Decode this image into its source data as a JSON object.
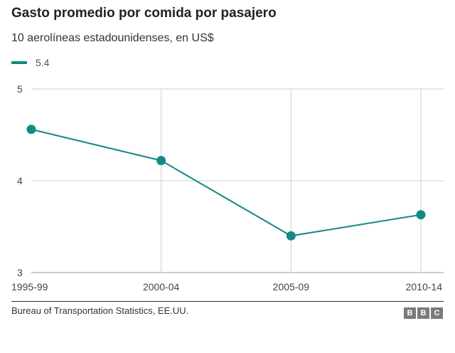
{
  "header": {
    "title": "Gasto promedio por comida por pasajero",
    "subtitle": "10 aerolíneas estadounidenses, en US$"
  },
  "footer": {
    "source": "Bureau of Transportation Statistics, EE.UU.",
    "logo_letters": [
      "B",
      "B",
      "C"
    ]
  },
  "chart_data": {
    "type": "line",
    "categories": [
      "1995-99",
      "2000-04",
      "2005-09",
      "2010-14"
    ],
    "series": [
      {
        "name": "5.4",
        "values": [
          4.56,
          4.22,
          3.4,
          3.63
        ],
        "color": "#138a85"
      }
    ],
    "ylim": [
      3,
      5
    ],
    "yticks": [
      3,
      4,
      5
    ],
    "grid": true,
    "legend_position": "top-left"
  }
}
